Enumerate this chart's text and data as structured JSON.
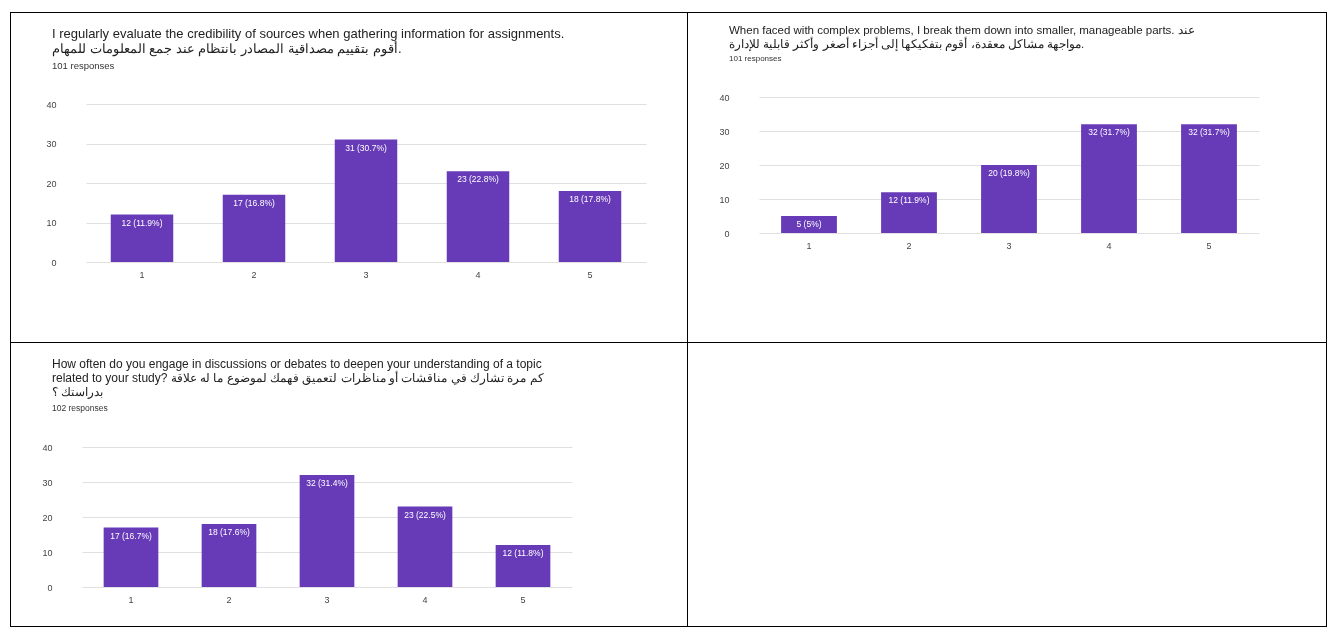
{
  "chart_data": [
    {
      "type": "bar",
      "title": "I regularly evaluate the credibility of sources when gathering information for assignments. أقوم بتقييم مصداقية المصادر بانتظام عند جمع المعلومات للمهام.",
      "subtitle": "101 responses",
      "categories": [
        "1",
        "2",
        "3",
        "4",
        "5"
      ],
      "values": [
        12,
        17,
        31,
        23,
        18
      ],
      "value_labels": [
        "12 (11.9%)",
        "17 (16.8%)",
        "31 (30.7%)",
        "23 (22.8%)",
        "18 (17.8%)"
      ],
      "color": "#673ab7",
      "ylim": [
        0,
        40
      ],
      "yticks": [
        0,
        10,
        20,
        30,
        40
      ],
      "grid": "y"
    },
    {
      "type": "bar",
      "title": "When faced with complex problems, I break them down into smaller, manageable parts. عند مواجهة مشاكل معقدة، أقوم بتفكيكها إلى أجزاء أصغر وأكثر قابلية للإدارة.",
      "subtitle": "101 responses",
      "categories": [
        "1",
        "2",
        "3",
        "4",
        "5"
      ],
      "values": [
        5,
        12,
        20,
        32,
        32
      ],
      "value_labels": [
        "5 (5%)",
        "12 (11.9%)",
        "20 (19.8%)",
        "32 (31.7%)",
        "32 (31.7%)"
      ],
      "color": "#673ab7",
      "ylim": [
        0,
        40
      ],
      "yticks": [
        0,
        10,
        20,
        30,
        40
      ],
      "grid": "y"
    },
    {
      "type": "bar",
      "title": "How often do you engage in discussions or debates to deepen your understanding of a topic related to your study? كم مرة تشارك في مناقشات أو مناظرات لتعميق فهمك لموضوع ما له علاقة بدراستك ؟",
      "subtitle": "102 responses",
      "categories": [
        "1",
        "2",
        "3",
        "4",
        "5"
      ],
      "values": [
        17,
        18,
        32,
        23,
        12
      ],
      "value_labels": [
        "17 (16.7%)",
        "18 (17.6%)",
        "32 (31.4%)",
        "23 (22.5%)",
        "12 (11.8%)"
      ],
      "color": "#673ab7",
      "ylim": [
        0,
        40
      ],
      "yticks": [
        0,
        10,
        20,
        30,
        40
      ],
      "grid": "y"
    }
  ]
}
